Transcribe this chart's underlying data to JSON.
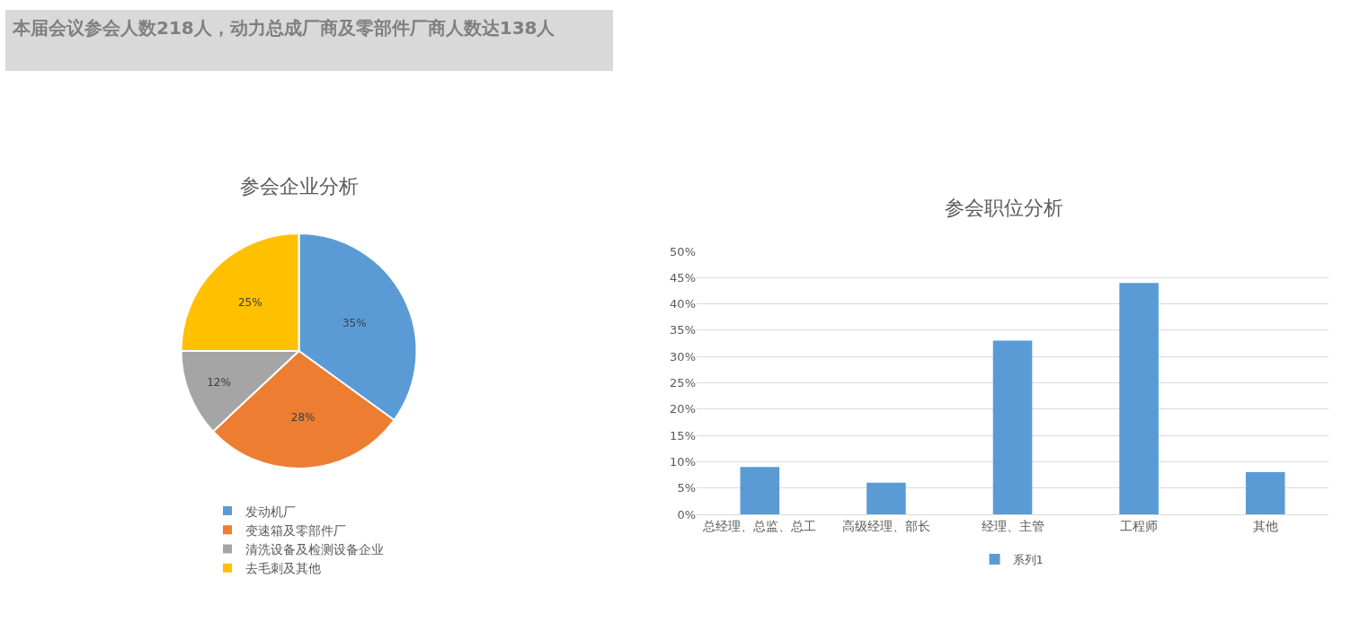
{
  "chart_data": [
    {
      "type": "other",
      "title": "本届会议参会人数218人，动力总成厂商及零部件厂商人数达138人"
    },
    {
      "type": "pie",
      "title": "参会企业分析",
      "categories": [
        "发动机厂",
        "变速箱及零部件厂",
        "清洗设备及检测设备企业",
        "去毛刺及其他"
      ],
      "values": [
        35,
        28,
        12,
        25
      ],
      "colors": [
        "#5b9bd5",
        "#ed7d31",
        "#a5a5a5",
        "#ffc000"
      ],
      "value_labels": [
        "35%",
        "28%",
        "12%",
        "25%"
      ],
      "legend": "bottom"
    },
    {
      "type": "bar",
      "title": "参会职位分析",
      "categories": [
        "总经理、总监、总工",
        "高级经理、部长",
        "经理、主管",
        "工程师",
        "其他"
      ],
      "series": [
        {
          "name": "系列1",
          "color": "#5b9bd5",
          "values": [
            9,
            6,
            33,
            44,
            8
          ]
        }
      ],
      "ylim": [
        0,
        50
      ],
      "yticks": [
        {
          "value": 0,
          "label": "0%"
        },
        {
          "value": 5,
          "label": "5%"
        },
        {
          "value": 10,
          "label": "10%"
        },
        {
          "value": 15,
          "label": "15%"
        },
        {
          "value": 20,
          "label": "20%"
        },
        {
          "value": 25,
          "label": "25%"
        },
        {
          "value": 30,
          "label": "30%"
        },
        {
          "value": 35,
          "label": "35%"
        },
        {
          "value": 40,
          "label": "40%"
        },
        {
          "value": 45,
          "label": "45%"
        },
        {
          "value": 50,
          "label": "50%"
        }
      ],
      "grid": "y",
      "legend": "bottom"
    }
  ]
}
